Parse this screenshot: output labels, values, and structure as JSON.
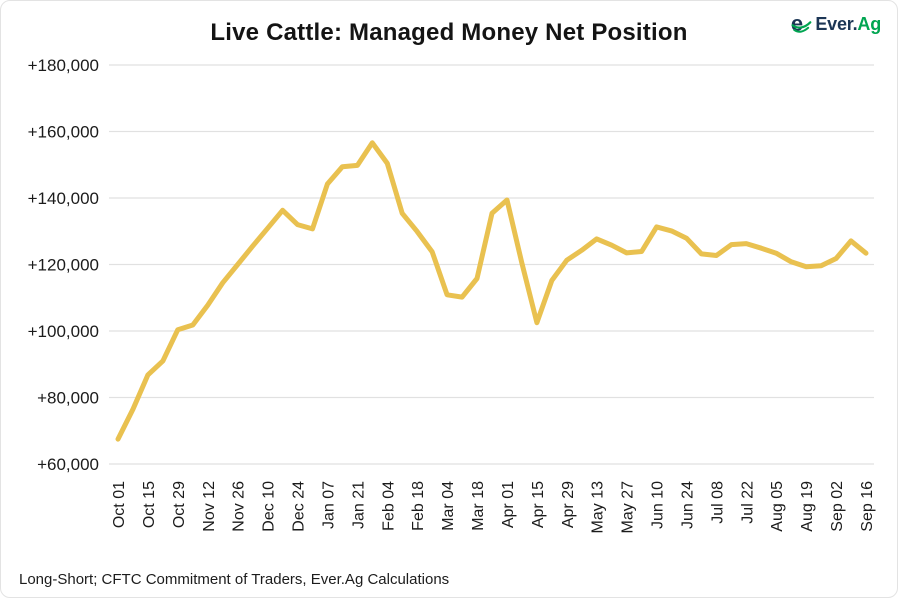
{
  "header": {
    "title": "Live Cattle: Managed Money Net Position",
    "logo": {
      "brand": "Ever.",
      "brand_suffix": "Ag",
      "icon": "ever-ag-e-icon",
      "navy_color": "#1c3655",
      "green_color": "#00a551"
    }
  },
  "footer": {
    "source_note": "Long-Short; CFTC Commitment of Traders, Ever.Ag Calculations"
  },
  "chart_data": {
    "type": "line",
    "title": "Live Cattle: Managed Money Net Position",
    "grid": "horizontal-only",
    "gridline_color": "#e1e1e1",
    "background": "#ffffff",
    "text_color": "#1b1b1b",
    "ylim": [
      60000,
      180000
    ],
    "y_ticks": [
      {
        "value": 180000,
        "label": "+180,000"
      },
      {
        "value": 160000,
        "label": "+160,000"
      },
      {
        "value": 140000,
        "label": "+140,000"
      },
      {
        "value": 120000,
        "label": "+120,000"
      },
      {
        "value": 100000,
        "label": "+100,000"
      },
      {
        "value": 80000,
        "label": "+80,000"
      },
      {
        "value": 60000,
        "label": "+60,000"
      }
    ],
    "x_tick_labels": [
      "Oct 01",
      "Oct 15",
      "Oct 29",
      "Nov 12",
      "Nov 26",
      "Dec 10",
      "Dec 24",
      "Jan 07",
      "Jan 21",
      "Feb 04",
      "Feb 18",
      "Mar 04",
      "Mar 18",
      "Apr 01",
      "Apr 15",
      "Apr 29",
      "May 13",
      "May 27",
      "Jun 10",
      "Jun 24",
      "Jul 08",
      "Jul 22",
      "Aug 05",
      "Aug 19",
      "Sep 02",
      "Sep 16"
    ],
    "x_tick_every_nth_point": 2,
    "series": [
      {
        "name": "Managed Money Net Position (weekly)",
        "color": "#e9c150",
        "line_width": 5,
        "dates": [
          "Oct 01",
          "Oct 08",
          "Oct 15",
          "Oct 22",
          "Oct 29",
          "Nov 05",
          "Nov 12",
          "Nov 19",
          "Nov 26",
          "Dec 03",
          "Dec 10",
          "Dec 17",
          "Dec 24",
          "Dec 31",
          "Jan 07",
          "Jan 14",
          "Jan 21",
          "Jan 28",
          "Feb 04",
          "Feb 11",
          "Feb 18",
          "Feb 25",
          "Mar 04",
          "Mar 11",
          "Mar 18",
          "Mar 25",
          "Apr 01",
          "Apr 08",
          "Apr 15",
          "Apr 22",
          "Apr 29",
          "May 06",
          "May 13",
          "May 20",
          "May 27",
          "Jun 03",
          "Jun 10",
          "Jun 17",
          "Jun 24",
          "Jul 01",
          "Jul 08",
          "Jul 15",
          "Jul 22",
          "Jul 29",
          "Aug 05",
          "Aug 12",
          "Aug 19",
          "Aug 26",
          "Sep 02",
          "Sep 09",
          "Sep 16"
        ],
        "values": [
          67500,
          76500,
          86800,
          91000,
          100400,
          101800,
          107800,
          114500,
          120000,
          125500,
          130900,
          136300,
          132000,
          130700,
          144200,
          149400,
          149800,
          156600,
          150400,
          135400,
          129900,
          123800,
          110900,
          110200,
          115800,
          135400,
          139400,
          120400,
          102500,
          115200,
          121300,
          124300,
          127700,
          125800,
          123500,
          123900,
          131300,
          130100,
          127900,
          123200,
          122700,
          126000,
          126300,
          124900,
          123400,
          120800,
          119300,
          119600,
          121800,
          127100,
          123400
        ]
      }
    ]
  }
}
